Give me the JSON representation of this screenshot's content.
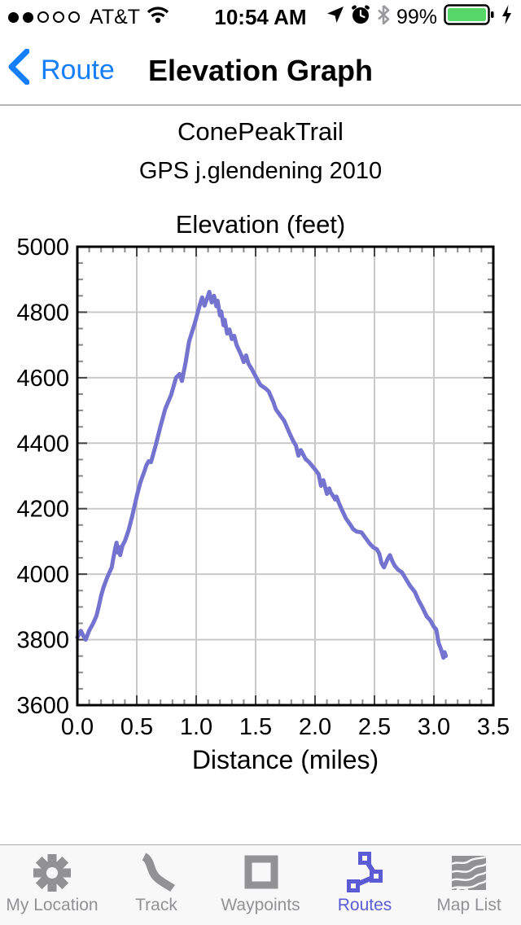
{
  "status_bar": {
    "carrier": "AT&T",
    "time": "10:54 AM",
    "battery_percent": "99%",
    "signal": {
      "filled_dots": 2,
      "total_dots": 5
    },
    "battery_color": "#57d769",
    "bluetooth_color": "#9a9a9e"
  },
  "nav_bar": {
    "back_label": "Route",
    "title": "Elevation Graph",
    "accent_color": "#157efb"
  },
  "route_header": {
    "title": "ConePeakTrail",
    "subtitle": "GPS j.glendening 2010"
  },
  "chart_data": {
    "type": "line",
    "title": "Elevation (feet)",
    "xlabel": "Distance (miles)",
    "ylabel": "",
    "xlim": [
      0,
      3.5
    ],
    "ylim": [
      3600,
      5000
    ],
    "xticks": [
      0,
      0.5,
      1,
      1.5,
      2,
      2.5,
      3,
      3.5
    ],
    "xtick_labels": [
      "0.0",
      "0.5",
      "1.0",
      "1.5",
      "2.0",
      "2.5",
      "3.0",
      "3.5"
    ],
    "yticks": [
      3600,
      3800,
      4000,
      4200,
      4400,
      4600,
      4800,
      5000
    ],
    "ytick_labels": [
      "3600",
      "3800",
      "4000",
      "4200",
      "4400",
      "4600",
      "4800",
      "5000"
    ],
    "minor_x_step": 0.1,
    "minor_y_step": 50,
    "grid": true,
    "legend": "none",
    "line_color": "#7473d0",
    "series": [
      {
        "name": "elevation_profile",
        "points": [
          [
            0.0,
            3807
          ],
          [
            0.02,
            3820
          ],
          [
            0.03,
            3827
          ],
          [
            0.05,
            3812
          ],
          [
            0.07,
            3800
          ],
          [
            0.1,
            3828
          ],
          [
            0.13,
            3848
          ],
          [
            0.16,
            3872
          ],
          [
            0.18,
            3901
          ],
          [
            0.2,
            3934
          ],
          [
            0.22,
            3959
          ],
          [
            0.25,
            3989
          ],
          [
            0.27,
            4005
          ],
          [
            0.29,
            4021
          ],
          [
            0.3,
            4043
          ],
          [
            0.32,
            4081
          ],
          [
            0.33,
            4096
          ],
          [
            0.34,
            4066
          ],
          [
            0.35,
            4083
          ],
          [
            0.36,
            4058
          ],
          [
            0.38,
            4088
          ],
          [
            0.4,
            4101
          ],
          [
            0.43,
            4133
          ],
          [
            0.46,
            4175
          ],
          [
            0.5,
            4238
          ],
          [
            0.53,
            4280
          ],
          [
            0.56,
            4310
          ],
          [
            0.58,
            4332
          ],
          [
            0.6,
            4345
          ],
          [
            0.62,
            4342
          ],
          [
            0.66,
            4395
          ],
          [
            0.7,
            4452
          ],
          [
            0.74,
            4505
          ],
          [
            0.79,
            4548
          ],
          [
            0.83,
            4600
          ],
          [
            0.86,
            4611
          ],
          [
            0.88,
            4590
          ],
          [
            0.91,
            4645
          ],
          [
            0.94,
            4710
          ],
          [
            0.99,
            4768
          ],
          [
            1.03,
            4822
          ],
          [
            1.05,
            4845
          ],
          [
            1.07,
            4820
          ],
          [
            1.09,
            4840
          ],
          [
            1.11,
            4862
          ],
          [
            1.13,
            4830
          ],
          [
            1.15,
            4850
          ],
          [
            1.17,
            4818
          ],
          [
            1.18,
            4835
          ],
          [
            1.2,
            4790
          ],
          [
            1.21,
            4802
          ],
          [
            1.23,
            4760
          ],
          [
            1.24,
            4777
          ],
          [
            1.26,
            4735
          ],
          [
            1.28,
            4747
          ],
          [
            1.3,
            4718
          ],
          [
            1.32,
            4728
          ],
          [
            1.34,
            4700
          ],
          [
            1.38,
            4668
          ],
          [
            1.4,
            4648
          ],
          [
            1.42,
            4668
          ],
          [
            1.44,
            4643
          ],
          [
            1.47,
            4625
          ],
          [
            1.49,
            4611
          ],
          [
            1.54,
            4578
          ],
          [
            1.58,
            4568
          ],
          [
            1.61,
            4558
          ],
          [
            1.65,
            4525
          ],
          [
            1.67,
            4504
          ],
          [
            1.71,
            4483
          ],
          [
            1.74,
            4469
          ],
          [
            1.78,
            4435
          ],
          [
            1.81,
            4411
          ],
          [
            1.84,
            4392
          ],
          [
            1.86,
            4362
          ],
          [
            1.88,
            4379
          ],
          [
            1.92,
            4352
          ],
          [
            1.95,
            4342
          ],
          [
            2.0,
            4320
          ],
          [
            2.03,
            4305
          ],
          [
            2.05,
            4270
          ],
          [
            2.07,
            4287
          ],
          [
            2.1,
            4245
          ],
          [
            2.12,
            4262
          ],
          [
            2.13,
            4250
          ],
          [
            2.15,
            4240
          ],
          [
            2.17,
            4228
          ],
          [
            2.18,
            4237
          ],
          [
            2.2,
            4218
          ],
          [
            2.23,
            4193
          ],
          [
            2.26,
            4170
          ],
          [
            2.29,
            4155
          ],
          [
            2.32,
            4138
          ],
          [
            2.35,
            4130
          ],
          [
            2.39,
            4128
          ],
          [
            2.43,
            4108
          ],
          [
            2.46,
            4093
          ],
          [
            2.49,
            4082
          ],
          [
            2.52,
            4076
          ],
          [
            2.54,
            4063
          ],
          [
            2.56,
            4033
          ],
          [
            2.58,
            4021
          ],
          [
            2.61,
            4046
          ],
          [
            2.63,
            4058
          ],
          [
            2.65,
            4040
          ],
          [
            2.67,
            4026
          ],
          [
            2.7,
            4013
          ],
          [
            2.73,
            4006
          ],
          [
            2.76,
            3988
          ],
          [
            2.8,
            3964
          ],
          [
            2.84,
            3946
          ],
          [
            2.87,
            3921
          ],
          [
            2.9,
            3901
          ],
          [
            2.94,
            3871
          ],
          [
            2.97,
            3859
          ],
          [
            3.0,
            3839
          ],
          [
            3.02,
            3831
          ],
          [
            3.04,
            3790
          ],
          [
            3.06,
            3770
          ],
          [
            3.08,
            3745
          ],
          [
            3.09,
            3762
          ],
          [
            3.1,
            3750
          ]
        ]
      }
    ]
  },
  "tab_bar": {
    "active_color": "#5b5bd6",
    "inactive_color": "#929295",
    "items": [
      {
        "label": "My Location",
        "icon": "my-location-asterisk-icon",
        "active": false
      },
      {
        "label": "Track",
        "icon": "track-curve-icon",
        "active": false
      },
      {
        "label": "Waypoints",
        "icon": "waypoints-square-icon",
        "active": false
      },
      {
        "label": "Routes",
        "icon": "routes-nodes-icon",
        "active": true
      },
      {
        "label": "Map List",
        "icon": "topo-map-icon",
        "active": false
      }
    ]
  }
}
